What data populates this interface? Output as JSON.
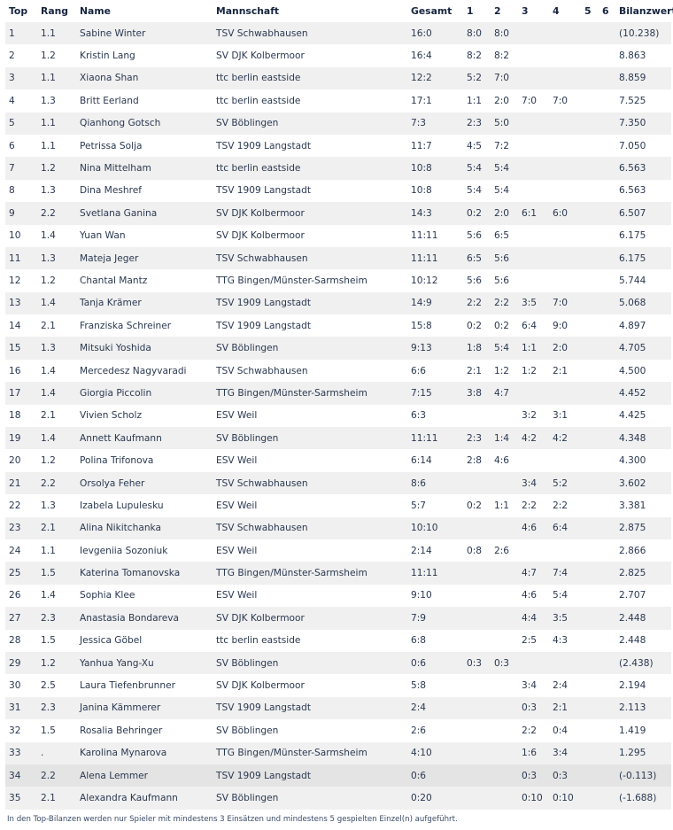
{
  "table": {
    "headers": [
      "Top",
      "Rang",
      "Name",
      "Mannschaft",
      "Gesamt",
      "1",
      "2",
      "3",
      "4",
      "5",
      "6",
      "Bilanzwert"
    ],
    "highlighted_row": 34,
    "rows": [
      [
        "1",
        "1.1",
        "Sabine Winter",
        "TSV Schwabhausen",
        "16:0",
        "8:0",
        "8:0",
        "",
        "",
        "",
        "",
        "(10.238)"
      ],
      [
        "2",
        "1.2",
        "Kristin Lang",
        "SV DJK Kolbermoor",
        "16:4",
        "8:2",
        "8:2",
        "",
        "",
        "",
        "",
        "8.863"
      ],
      [
        "3",
        "1.1",
        "Xiaona Shan",
        "ttc berlin eastside",
        "12:2",
        "5:2",
        "7:0",
        "",
        "",
        "",
        "",
        "8.859"
      ],
      [
        "4",
        "1.3",
        "Britt Eerland",
        "ttc berlin eastside",
        "17:1",
        "1:1",
        "2:0",
        "7:0",
        "7:0",
        "",
        "",
        "7.525"
      ],
      [
        "5",
        "1.1",
        "Qianhong Gotsch",
        "SV Böblingen",
        "7:3",
        "2:3",
        "5:0",
        "",
        "",
        "",
        "",
        "7.350"
      ],
      [
        "6",
        "1.1",
        "Petrissa Solja",
        "TSV 1909 Langstadt",
        "11:7",
        "4:5",
        "7:2",
        "",
        "",
        "",
        "",
        "7.050"
      ],
      [
        "7",
        "1.2",
        "Nina Mittelham",
        "ttc berlin eastside",
        "10:8",
        "5:4",
        "5:4",
        "",
        "",
        "",
        "",
        "6.563"
      ],
      [
        "8",
        "1.3",
        "Dina Meshref",
        "TSV 1909 Langstadt",
        "10:8",
        "5:4",
        "5:4",
        "",
        "",
        "",
        "",
        "6.563"
      ],
      [
        "9",
        "2.2",
        "Svetlana Ganina",
        "SV DJK Kolbermoor",
        "14:3",
        "0:2",
        "2:0",
        "6:1",
        "6:0",
        "",
        "",
        "6.507"
      ],
      [
        "10",
        "1.4",
        "Yuan Wan",
        "SV DJK Kolbermoor",
        "11:11",
        "5:6",
        "6:5",
        "",
        "",
        "",
        "",
        "6.175"
      ],
      [
        "11",
        "1.3",
        "Mateja Jeger",
        "TSV Schwabhausen",
        "11:11",
        "6:5",
        "5:6",
        "",
        "",
        "",
        "",
        "6.175"
      ],
      [
        "12",
        "1.2",
        "Chantal Mantz",
        "TTG Bingen/Münster-Sarmsheim",
        "10:12",
        "5:6",
        "5:6",
        "",
        "",
        "",
        "",
        "5.744"
      ],
      [
        "13",
        "1.4",
        "Tanja Krämer",
        "TSV 1909 Langstadt",
        "14:9",
        "2:2",
        "2:2",
        "3:5",
        "7:0",
        "",
        "",
        "5.068"
      ],
      [
        "14",
        "2.1",
        "Franziska Schreiner",
        "TSV 1909 Langstadt",
        "15:8",
        "0:2",
        "0:2",
        "6:4",
        "9:0",
        "",
        "",
        "4.897"
      ],
      [
        "15",
        "1.3",
        "Mitsuki Yoshida",
        "SV Böblingen",
        "9:13",
        "1:8",
        "5:4",
        "1:1",
        "2:0",
        "",
        "",
        "4.705"
      ],
      [
        "16",
        "1.4",
        "Mercedesz Nagyvaradi",
        "TSV Schwabhausen",
        "6:6",
        "2:1",
        "1:2",
        "1:2",
        "2:1",
        "",
        "",
        "4.500"
      ],
      [
        "17",
        "1.4",
        "Giorgia Piccolin",
        "TTG Bingen/Münster-Sarmsheim",
        "7:15",
        "3:8",
        "4:7",
        "",
        "",
        "",
        "",
        "4.452"
      ],
      [
        "18",
        "2.1",
        "Vivien Scholz",
        "ESV Weil",
        "6:3",
        "",
        "",
        "3:2",
        "3:1",
        "",
        "",
        "4.425"
      ],
      [
        "19",
        "1.4",
        "Annett Kaufmann",
        "SV Böblingen",
        "11:11",
        "2:3",
        "1:4",
        "4:2",
        "4:2",
        "",
        "",
        "4.348"
      ],
      [
        "20",
        "1.2",
        "Polina Trifonova",
        "ESV Weil",
        "6:14",
        "2:8",
        "4:6",
        "",
        "",
        "",
        "",
        "4.300"
      ],
      [
        "21",
        "2.2",
        "Orsolya Feher",
        "TSV Schwabhausen",
        "8:6",
        "",
        "",
        "3:4",
        "5:2",
        "",
        "",
        "3.602"
      ],
      [
        "22",
        "1.3",
        "Izabela Lupulesku",
        "ESV Weil",
        "5:7",
        "0:2",
        "1:1",
        "2:2",
        "2:2",
        "",
        "",
        "3.381"
      ],
      [
        "23",
        "2.1",
        "Alina Nikitchanka",
        "TSV Schwabhausen",
        "10:10",
        "",
        "",
        "4:6",
        "6:4",
        "",
        "",
        "2.875"
      ],
      [
        "24",
        "1.1",
        "Ievgeniia Sozoniuk",
        "ESV Weil",
        "2:14",
        "0:8",
        "2:6",
        "",
        "",
        "",
        "",
        "2.866"
      ],
      [
        "25",
        "1.5",
        "Katerina Tomanovska",
        "TTG Bingen/Münster-Sarmsheim",
        "11:11",
        "",
        "",
        "4:7",
        "7:4",
        "",
        "",
        "2.825"
      ],
      [
        "26",
        "1.4",
        "Sophia Klee",
        "ESV Weil",
        "9:10",
        "",
        "",
        "4:6",
        "5:4",
        "",
        "",
        "2.707"
      ],
      [
        "27",
        "2.3",
        "Anastasia Bondareva",
        "SV DJK Kolbermoor",
        "7:9",
        "",
        "",
        "4:4",
        "3:5",
        "",
        "",
        "2.448"
      ],
      [
        "28",
        "1.5",
        "Jessica Göbel",
        "ttc berlin eastside",
        "6:8",
        "",
        "",
        "2:5",
        "4:3",
        "",
        "",
        "2.448"
      ],
      [
        "29",
        "1.2",
        "Yanhua Yang-Xu",
        "SV Böblingen",
        "0:6",
        "0:3",
        "0:3",
        "",
        "",
        "",
        "",
        "(2.438)"
      ],
      [
        "30",
        "2.5",
        "Laura Tiefenbrunner",
        "SV DJK Kolbermoor",
        "5:8",
        "",
        "",
        "3:4",
        "2:4",
        "",
        "",
        "2.194"
      ],
      [
        "31",
        "2.3",
        "Janina Kämmerer",
        "TSV 1909 Langstadt",
        "2:4",
        "",
        "",
        "0:3",
        "2:1",
        "",
        "",
        "2.113"
      ],
      [
        "32",
        "1.5",
        "Rosalia Behringer",
        "SV Böblingen",
        "2:6",
        "",
        "",
        "2:2",
        "0:4",
        "",
        "",
        "1.419"
      ],
      [
        "33",
        ".",
        "Karolina Mynarova",
        "TTG Bingen/Münster-Sarmsheim",
        "4:10",
        "",
        "",
        "1:6",
        "3:4",
        "",
        "",
        "1.295"
      ],
      [
        "34",
        "2.2",
        "Alena Lemmer",
        "TSV 1909 Langstadt",
        "0:6",
        "",
        "",
        "0:3",
        "0:3",
        "",
        "",
        "(-0.113)"
      ],
      [
        "35",
        "2.1",
        "Alexandra Kaufmann",
        "SV Böblingen",
        "0:20",
        "",
        "",
        "0:10",
        "0:10",
        "",
        "",
        "(-1.688)"
      ]
    ]
  },
  "footer": "In den Top-Bilanzen werden nur Spieler mit mindestens 3 Einsätzen und mindestens 5 gespielten Einzel(n) aufgeführt."
}
